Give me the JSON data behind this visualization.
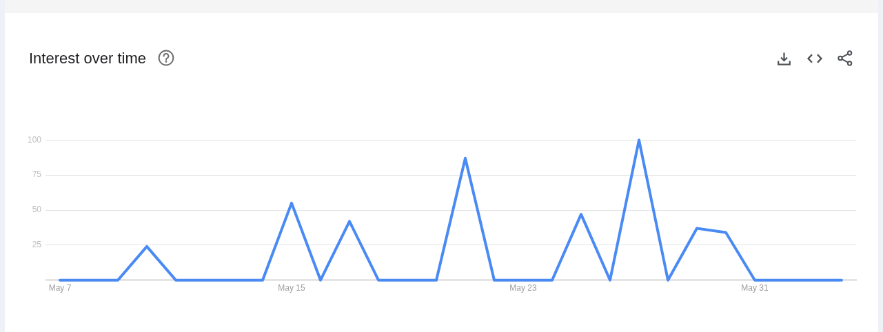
{
  "chart_data": {
    "type": "line",
    "title": "Interest over time",
    "categories": [
      "May 7",
      null,
      null,
      null,
      null,
      null,
      null,
      null,
      "May 15",
      null,
      null,
      null,
      null,
      null,
      null,
      null,
      "May 23",
      null,
      null,
      null,
      null,
      null,
      null,
      null,
      "May 31",
      null,
      null,
      null
    ],
    "series": [
      {
        "color": "#4a8af4",
        "values": [
          0,
          0,
          0,
          24,
          0,
          0,
          0,
          0,
          55,
          0,
          42,
          0,
          0,
          0,
          87,
          0,
          0,
          0,
          47,
          0,
          100,
          0,
          37,
          34,
          0,
          0,
          0,
          0
        ]
      }
    ],
    "ylim": [
      0,
      100
    ],
    "yticks": [
      25,
      50,
      75,
      100
    ],
    "grid": "y",
    "marker": "none"
  }
}
